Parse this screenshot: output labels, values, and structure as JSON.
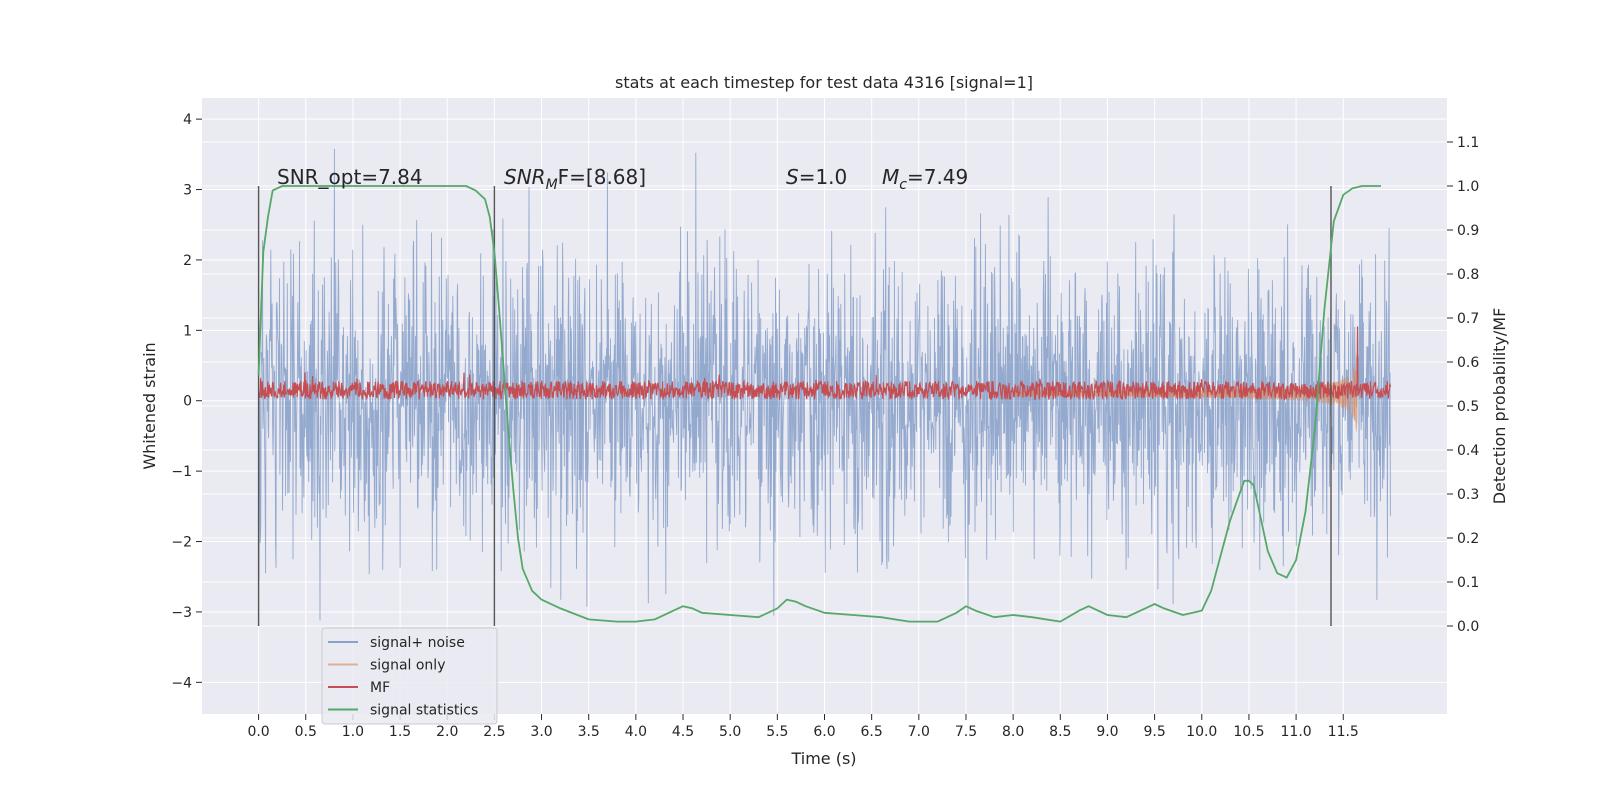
{
  "chart_data": {
    "type": "line",
    "title": "stats at each timestep for test data 4316 [signal=1]",
    "xlabel": "Time (s)",
    "ylabel_left": "Whitened strain",
    "ylabel_right": "Detection probability/MF",
    "xlim": [
      -0.6,
      12.6
    ],
    "ylim_left": [
      -4.45,
      4.3
    ],
    "ylim_right": [
      -0.2,
      1.2
    ],
    "x_ticks": [
      "0.0",
      "0.5",
      "1.0",
      "1.5",
      "2.0",
      "2.5",
      "3.0",
      "3.5",
      "4.0",
      "4.5",
      "5.0",
      "5.5",
      "6.0",
      "6.5",
      "7.0",
      "7.5",
      "8.0",
      "8.5",
      "9.0",
      "9.5",
      "10.0",
      "10.5",
      "11.0",
      "11.5"
    ],
    "y_ticks_left": [
      "4",
      "3",
      "2",
      "1",
      "0",
      "−1",
      "−2",
      "−3",
      "−4"
    ],
    "y_ticks_right": [
      "1.1",
      "1.0",
      "0.9",
      "0.8",
      "0.7",
      "0.6",
      "0.5",
      "0.4",
      "0.3",
      "0.2",
      "0.1",
      "0.0"
    ],
    "grid": true,
    "legend_position": "lower-left",
    "annotations": {
      "snr_opt": "SNR_opt=7.84",
      "snr_mf_label": "SNR",
      "snr_mf_sub": "M",
      "snr_mf_value": "F=[8.68]",
      "s_label": "S",
      "s_value": "=1.0",
      "mc_label": "M",
      "mc_sub": "c",
      "mc_value": "=7.49"
    },
    "markers_x": [
      0.0,
      2.5,
      11.37
    ],
    "markers_y_range": [
      -3.2,
      3.05
    ],
    "series": [
      {
        "name": "signal+ noise",
        "color": "#4c72b0",
        "axis": "left",
        "kind": "noise",
        "x_range": [
          0.0,
          12.0
        ],
        "amplitude_std": 1.0
      },
      {
        "name": "signal only",
        "color": "#dd8452",
        "axis": "left",
        "kind": "chirp",
        "x_range": [
          8.0,
          11.65
        ],
        "peak_amplitude": 0.95
      },
      {
        "name": "MF",
        "color": "#c44e52",
        "axis": "left",
        "kind": "band",
        "x_range": [
          0.0,
          12.0
        ],
        "center": 0.15,
        "spike_x": 11.65,
        "spike_y": 1.05
      },
      {
        "name": "signal statistics",
        "color": "#55a868",
        "axis": "right",
        "kind": "line",
        "x": [
          0.0,
          0.05,
          0.1,
          0.15,
          0.25,
          0.5,
          1.0,
          1.5,
          2.0,
          2.2,
          2.3,
          2.4,
          2.45,
          2.5,
          2.55,
          2.6,
          2.65,
          2.7,
          2.75,
          2.8,
          2.9,
          3.0,
          3.2,
          3.5,
          3.8,
          4.0,
          4.2,
          4.4,
          4.5,
          4.6,
          4.7,
          5.0,
          5.3,
          5.5,
          5.6,
          5.7,
          5.8,
          6.0,
          6.3,
          6.6,
          6.9,
          7.2,
          7.4,
          7.5,
          7.6,
          7.8,
          8.0,
          8.2,
          8.5,
          8.7,
          8.8,
          9.0,
          9.2,
          9.4,
          9.5,
          9.6,
          9.8,
          10.0,
          10.1,
          10.2,
          10.3,
          10.4,
          10.45,
          10.5,
          10.55,
          10.6,
          10.7,
          10.8,
          10.9,
          11.0,
          11.1,
          11.2,
          11.3,
          11.4,
          11.5,
          11.6,
          11.7,
          11.8,
          11.9
        ],
        "values": [
          0.57,
          0.85,
          0.93,
          0.99,
          1.0,
          1.0,
          1.0,
          1.0,
          1.0,
          1.0,
          0.99,
          0.97,
          0.93,
          0.85,
          0.72,
          0.58,
          0.44,
          0.31,
          0.2,
          0.13,
          0.08,
          0.06,
          0.04,
          0.015,
          0.01,
          0.01,
          0.015,
          0.035,
          0.045,
          0.04,
          0.03,
          0.025,
          0.02,
          0.04,
          0.06,
          0.055,
          0.045,
          0.03,
          0.025,
          0.02,
          0.01,
          0.01,
          0.03,
          0.045,
          0.035,
          0.02,
          0.025,
          0.02,
          0.01,
          0.035,
          0.045,
          0.025,
          0.02,
          0.04,
          0.05,
          0.04,
          0.025,
          0.035,
          0.08,
          0.16,
          0.24,
          0.3,
          0.33,
          0.33,
          0.32,
          0.27,
          0.17,
          0.12,
          0.11,
          0.15,
          0.26,
          0.45,
          0.72,
          0.92,
          0.98,
          0.995,
          1.0,
          1.0,
          1.0
        ]
      }
    ]
  }
}
